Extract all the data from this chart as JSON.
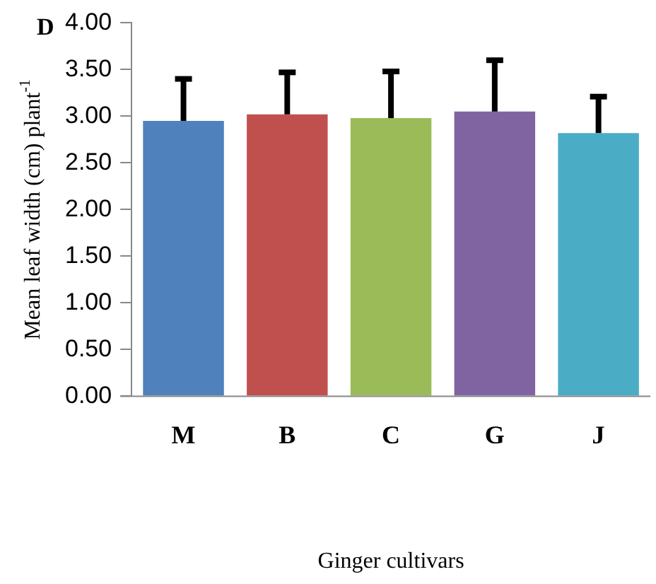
{
  "chart_data": {
    "type": "bar",
    "annotations": [
      "D"
    ],
    "xlabel": "Ginger cultivars",
    "ylabel": "Mean leaf width (cm) plant$^{-1}$",
    "categories": [
      "M",
      "B",
      "C",
      "G",
      "J"
    ],
    "values": [
      2.95,
      3.02,
      2.98,
      3.05,
      2.82
    ],
    "errors": [
      [
        2.95,
        3.4
      ],
      [
        3.02,
        3.47
      ],
      [
        2.98,
        3.48
      ],
      [
        3.05,
        3.6
      ],
      [
        2.82,
        3.21
      ]
    ],
    "colors": [
      "#4f81bd",
      "#c0504d",
      "#9bbb59",
      "#8064a2",
      "#4bacc6"
    ],
    "ylim": [
      0,
      4
    ],
    "yticks": [
      {
        "value": 0,
        "label": "0.00"
      },
      {
        "value": 0.5,
        "label": "0.50"
      },
      {
        "value": 1,
        "label": "1.00"
      },
      {
        "value": 1.5,
        "label": "1.50"
      },
      {
        "value": 2,
        "label": "2.00"
      },
      {
        "value": 2.5,
        "label": "2.50"
      },
      {
        "value": 3,
        "label": "3.00"
      },
      {
        "value": 3.5,
        "label": "3.50"
      },
      {
        "value": 4,
        "label": "4.00"
      }
    ],
    "grid": false,
    "legend": false
  }
}
